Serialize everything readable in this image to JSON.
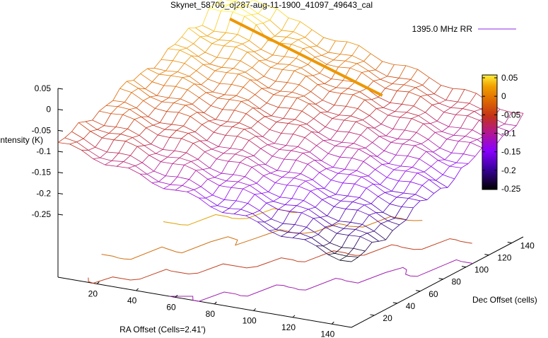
{
  "chart_data": {
    "type": "surface3d",
    "title": "Skynet_58706_oj287-aug-11-1900_41097_49643_cal",
    "zlabel": "Intensity (K)",
    "xlabel": "RA Offset (Cells=2.41')",
    "ylabel": "Dec Offset (cells)",
    "legend": {
      "entry": "1395.0 MHz RR",
      "color": "#8a2be2",
      "placement": "top-right"
    },
    "z_ticks": [
      "0.05",
      "0",
      "-0.05",
      "-0.1",
      "-0.15",
      "-0.2",
      "-0.25"
    ],
    "x_ticks": [
      "20",
      "40",
      "60",
      "80",
      "100",
      "120",
      "140"
    ],
    "y_ticks": [
      "20",
      "40",
      "60",
      "80",
      "100",
      "120",
      "140"
    ],
    "colorbar_ticks": [
      "0.05",
      "0",
      "-0.05",
      "-0.1",
      "-0.15",
      "-0.2",
      "-0.25"
    ],
    "zlim": [
      -0.25,
      0.05
    ],
    "xlim": [
      0,
      150
    ],
    "ylim": [
      0,
      150
    ],
    "colormap": [
      "#000000",
      "#3a009e",
      "#8a00ff",
      "#b4188c",
      "#c33218",
      "#df6a00",
      "#f0a000",
      "#fff03a"
    ],
    "surface": {
      "description_values": "intensity declines from about 0.05 K at high Dec / low RA to about -0.25 K at low Dec / high RA",
      "ridge_value": 0,
      "ridge_from_ra": 0,
      "ridge_to_ra": 115
    },
    "base_contours": [
      {
        "level": 0,
        "color": "#e0a000"
      },
      {
        "level": -0.05,
        "color": "#d07010"
      },
      {
        "level": -0.1,
        "color": "#c04020"
      },
      {
        "level": -0.15,
        "color": "#a020b0"
      }
    ]
  }
}
